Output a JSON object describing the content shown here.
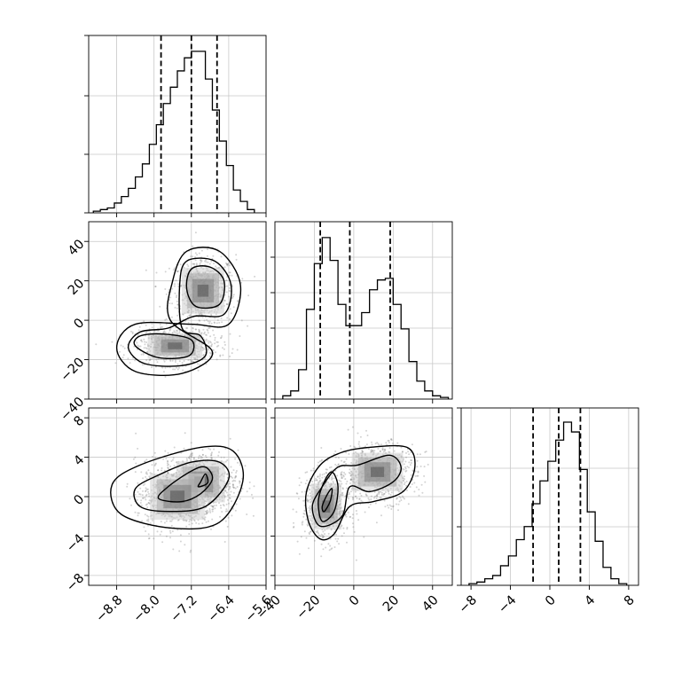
{
  "figure": {
    "type": "corner-plot"
  },
  "chart_data": [
    {
      "panel": "hist-param1",
      "type": "bar",
      "xlim": [
        -9.4,
        -5.6
      ],
      "ylim": [
        0,
        1.0
      ],
      "bin_edges": [
        -9.3,
        -9.15,
        -9.0,
        -8.85,
        -8.7,
        -8.55,
        -8.4,
        -8.25,
        -8.1,
        -7.95,
        -7.8,
        -7.65,
        -7.5,
        -7.35,
        -7.2,
        -7.05,
        -6.9,
        -6.75,
        -6.6,
        -6.45,
        -6.3,
        -6.15,
        -6.0,
        -5.85
      ],
      "counts": [
        0.01,
        0.02,
        0.03,
        0.06,
        0.1,
        0.15,
        0.22,
        0.3,
        0.42,
        0.54,
        0.67,
        0.77,
        0.87,
        0.95,
        0.99,
        0.99,
        0.82,
        0.63,
        0.44,
        0.29,
        0.14,
        0.07,
        0.02
      ],
      "quantiles": [
        -7.85,
        -7.2,
        -6.65
      ],
      "xtick_values": [
        -8.8,
        -8.0,
        -7.2,
        -6.4,
        -5.6
      ],
      "ytick_values": [
        0,
        0.33,
        0.66,
        1.0
      ]
    },
    {
      "panel": "scatter-param1-param2",
      "type": "scatter",
      "xlim": [
        -9.4,
        -5.6
      ],
      "ylim": [
        -40,
        50
      ],
      "clusters": [
        {
          "center_x": -6.95,
          "center_y": 15,
          "spread_x": 0.35,
          "spread_y": 9,
          "fraction": 0.5
        },
        {
          "center_x": -7.55,
          "center_y": -13,
          "spread_x": 0.45,
          "spread_y": 5,
          "fraction": 0.5
        }
      ],
      "contours": [
        [
          [
            -7.1,
            7
          ],
          [
            -6.6,
            8
          ],
          [
            -6.5,
            20
          ],
          [
            -6.8,
            27
          ],
          [
            -7.2,
            26
          ],
          [
            -7.3,
            16
          ]
        ],
        [
          [
            -7.25,
            -18
          ],
          [
            -7.2,
            -10
          ],
          [
            -7.8,
            -7
          ],
          [
            -8.3,
            -8
          ],
          [
            -8.4,
            -13
          ],
          [
            -7.9,
            -19
          ]
        ],
        [
          [
            -7.15,
            2
          ],
          [
            -6.5,
            3
          ],
          [
            -6.35,
            18
          ],
          [
            -6.7,
            30
          ],
          [
            -7.3,
            30
          ],
          [
            -7.45,
            18
          ],
          [
            -7.4,
            -4
          ],
          [
            -7.0,
            -8
          ],
          [
            -6.9,
            -18
          ],
          [
            -7.4,
            -23
          ],
          [
            -8.2,
            -22
          ],
          [
            -8.55,
            -14
          ],
          [
            -8.3,
            -6
          ],
          [
            -7.7,
            -4
          ]
        ],
        [
          [
            -7.2,
            -2
          ],
          [
            -6.4,
            -2
          ],
          [
            -6.15,
            18
          ],
          [
            -6.6,
            35
          ],
          [
            -7.3,
            35
          ],
          [
            -7.6,
            20
          ],
          [
            -7.65,
            0
          ],
          [
            -6.75,
            -16
          ],
          [
            -7.4,
            -27
          ],
          [
            -8.4,
            -26
          ],
          [
            -8.8,
            -14
          ],
          [
            -8.4,
            -2
          ]
        ]
      ],
      "xtick_values": [
        -8.8,
        -8.0,
        -7.2,
        -6.4,
        -5.6
      ],
      "ytick_values": [
        -40,
        -20,
        0,
        20,
        40
      ]
    },
    {
      "panel": "hist-param2",
      "type": "bar",
      "xlim": [
        -40,
        50
      ],
      "ylim": [
        0,
        1.0
      ],
      "bin_edges": [
        -36,
        -32,
        -28,
        -24,
        -20,
        -16,
        -12,
        -8,
        -4,
        0,
        4,
        8,
        12,
        16,
        20,
        24,
        28,
        32,
        36,
        40,
        44,
        48
      ],
      "counts": [
        0.02,
        0.05,
        0.18,
        0.55,
        0.83,
        0.99,
        0.85,
        0.58,
        0.45,
        0.45,
        0.53,
        0.67,
        0.73,
        0.74,
        0.58,
        0.43,
        0.23,
        0.11,
        0.05,
        0.02,
        0.01
      ],
      "quantiles": [
        -17,
        -2,
        18.5
      ],
      "xtick_values": [
        -40,
        -20,
        0,
        20,
        40
      ],
      "ytick_values": [
        0,
        0.2,
        0.4,
        0.6,
        0.8
      ]
    },
    {
      "panel": "scatter-param1-param3",
      "type": "scatter",
      "xlim": [
        -9.4,
        -5.6
      ],
      "ylim": [
        -9,
        9
      ],
      "clusters": [
        {
          "center_x": -7.0,
          "center_y": 1.5,
          "spread_x": 0.4,
          "spread_y": 1.6,
          "fraction": 0.5
        },
        {
          "center_x": -7.5,
          "center_y": 0.0,
          "spread_x": 0.45,
          "spread_y": 1.8,
          "fraction": 0.5
        }
      ],
      "contours": [
        [
          [
            -7.0,
            1.5
          ],
          [
            -6.9,
            2.3
          ],
          [
            -6.85,
            1.4
          ],
          [
            -7.05,
            1.0
          ]
        ],
        [
          [
            -7.4,
            -0.5
          ],
          [
            -7.0,
            0.3
          ],
          [
            -6.75,
            1.8
          ],
          [
            -6.9,
            3.0
          ],
          [
            -7.2,
            2.6
          ],
          [
            -7.7,
            1.0
          ],
          [
            -7.9,
            -0.2
          ]
        ],
        [
          [
            -7.7,
            -1.5
          ],
          [
            -6.9,
            -1.0
          ],
          [
            -6.4,
            1.8
          ],
          [
            -6.6,
            3.5
          ],
          [
            -7.2,
            3.5
          ],
          [
            -7.9,
            2.2
          ],
          [
            -8.4,
            0.8
          ],
          [
            -8.3,
            -1.0
          ]
        ],
        [
          [
            -7.6,
            -3.2
          ],
          [
            -6.6,
            -2.6
          ],
          [
            -6.1,
            1.5
          ],
          [
            -6.3,
            4.6
          ],
          [
            -7.0,
            5.0
          ],
          [
            -8.3,
            3.2
          ],
          [
            -8.9,
            1.2
          ],
          [
            -8.7,
            -1.8
          ]
        ]
      ],
      "xtick_values": [
        -8.8,
        -8.0,
        -7.2,
        -6.4,
        -5.6
      ],
      "ytick_values": [
        -8,
        -4,
        0,
        4,
        8
      ]
    },
    {
      "panel": "scatter-param2-param3",
      "type": "scatter",
      "xlim": [
        -40,
        50
      ],
      "ylim": [
        -9,
        9
      ],
      "clusters": [
        {
          "center_x": -14,
          "center_y": -1.0,
          "spread_x": 6,
          "spread_y": 1.8,
          "fraction": 0.5
        },
        {
          "center_x": 12,
          "center_y": 2.5,
          "spread_x": 10,
          "spread_y": 1.5,
          "fraction": 0.5
        }
      ],
      "contours": [
        [
          [
            -15,
            -1.5
          ],
          [
            -12,
            -0.5
          ],
          [
            -11,
            0.8
          ],
          [
            -13.5,
            0.2
          ],
          [
            -16,
            -1.0
          ]
        ],
        [
          [
            -16,
            -2.5
          ],
          [
            -10,
            -1.5
          ],
          [
            -8,
            1.0
          ],
          [
            -11,
            2.5
          ],
          [
            -15,
            1.5
          ],
          [
            -18,
            -0.5
          ]
        ],
        [
          [
            -17,
            -3.0
          ],
          [
            -6,
            -2.0
          ],
          [
            -2,
            1.0
          ],
          [
            8,
            0.5
          ],
          [
            20,
            1.5
          ],
          [
            24,
            3.0
          ],
          [
            18,
            4.2
          ],
          [
            2,
            3.2
          ],
          [
            -8,
            3.0
          ],
          [
            -16,
            1.0
          ],
          [
            -21,
            -1.0
          ]
        ],
        [
          [
            -17,
            -4.3
          ],
          [
            -10,
            -3.8
          ],
          [
            -2,
            -1.0
          ],
          [
            10,
            -0.5
          ],
          [
            25,
            0.5
          ],
          [
            31,
            3.0
          ],
          [
            27,
            5.0
          ],
          [
            8,
            5.0
          ],
          [
            -6,
            4.5
          ],
          [
            -17,
            3.2
          ],
          [
            -24,
            0.5
          ],
          [
            -23,
            -2.5
          ]
        ]
      ],
      "xtick_values": [
        -40,
        -20,
        0,
        20,
        40
      ],
      "ytick_values": [
        -8,
        -4,
        0,
        4,
        8
      ]
    },
    {
      "panel": "hist-param3",
      "type": "bar",
      "xlim": [
        -9,
        9
      ],
      "ylim": [
        0,
        1.0
      ],
      "bin_edges": [
        -8.2,
        -7.4,
        -6.6,
        -5.8,
        -5.0,
        -4.2,
        -3.4,
        -2.6,
        -1.8,
        -1.0,
        -0.2,
        0.6,
        1.4,
        2.2,
        3.0,
        3.8,
        4.6,
        5.4,
        6.2,
        7.0,
        7.8
      ],
      "counts": [
        0.01,
        0.02,
        0.04,
        0.06,
        0.12,
        0.18,
        0.28,
        0.36,
        0.5,
        0.64,
        0.76,
        0.89,
        1.0,
        0.94,
        0.71,
        0.45,
        0.27,
        0.11,
        0.04,
        0.01
      ],
      "quantiles": [
        -1.7,
        0.9,
        3.1
      ],
      "xtick_values": [
        -8,
        -4,
        0,
        4,
        8
      ],
      "ytick_values": [
        0,
        0.33,
        0.66,
        1.0
      ]
    }
  ],
  "labels": {
    "p1_ticks": [
      "−8.8",
      "−8.0",
      "−7.2",
      "−6.4",
      "−5.6"
    ],
    "p2_x_ticks": [
      "−40",
      "−20",
      "0",
      "20",
      "40"
    ],
    "p2_y_ticks": [
      "−40",
      "−20",
      "0",
      "20",
      "40"
    ],
    "p3_ticks": [
      "−8",
      "−4",
      "0",
      "4",
      "8"
    ]
  }
}
